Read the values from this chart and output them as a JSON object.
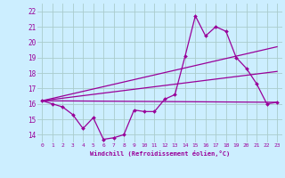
{
  "background_color": "#cceeff",
  "grid_color": "#aacccc",
  "line_color": "#990099",
  "x_label": "Windchill (Refroidissement éolien,°C)",
  "xlim": [
    -0.5,
    23.5
  ],
  "ylim": [
    13.5,
    22.5
  ],
  "yticks": [
    14,
    15,
    16,
    17,
    18,
    19,
    20,
    21,
    22
  ],
  "xticks": [
    0,
    1,
    2,
    3,
    4,
    5,
    6,
    7,
    8,
    9,
    10,
    11,
    12,
    13,
    14,
    15,
    16,
    17,
    18,
    19,
    20,
    21,
    22,
    23
  ],
  "series": [
    {
      "x": [
        0,
        1,
        2,
        3,
        4,
        5,
        6,
        7,
        8,
        9,
        10,
        11,
        12,
        13,
        14,
        15,
        16,
        17,
        18,
        19,
        20,
        21,
        22,
        23
      ],
      "y": [
        16.2,
        16.0,
        15.8,
        15.3,
        14.4,
        15.1,
        13.7,
        13.8,
        14.0,
        15.6,
        15.5,
        15.5,
        16.3,
        16.6,
        19.1,
        21.7,
        20.4,
        21.0,
        20.7,
        19.0,
        18.3,
        17.3,
        16.0,
        16.1
      ],
      "marker": "D",
      "markersize": 2.0,
      "linewidth": 0.9
    },
    {
      "x": [
        0,
        23
      ],
      "y": [
        16.2,
        16.1
      ],
      "marker": null,
      "linewidth": 0.9
    },
    {
      "x": [
        0,
        23
      ],
      "y": [
        16.2,
        19.7
      ],
      "marker": null,
      "linewidth": 0.9
    },
    {
      "x": [
        0,
        23
      ],
      "y": [
        16.2,
        18.1
      ],
      "marker": null,
      "linewidth": 0.9
    }
  ]
}
